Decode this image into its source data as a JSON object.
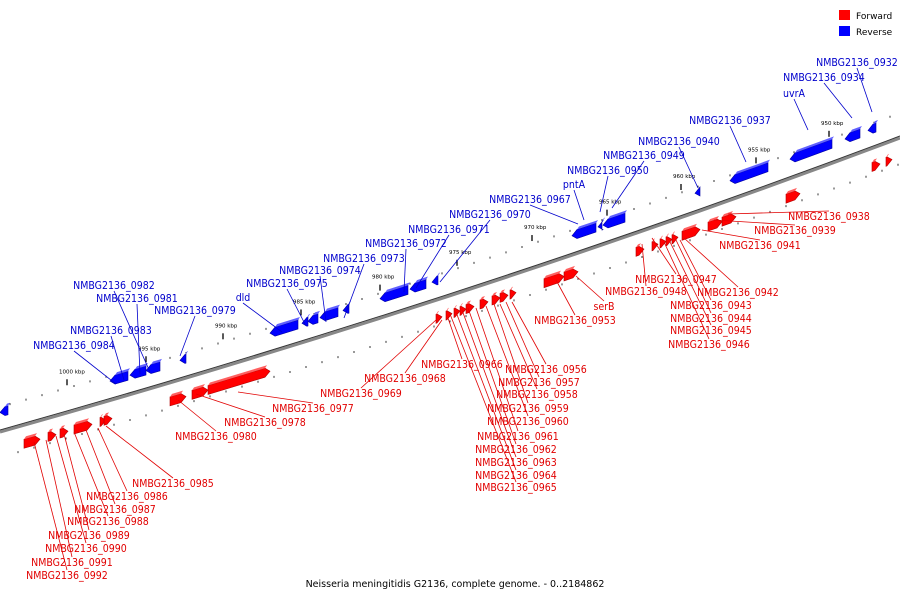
{
  "legend": {
    "forward": "Forward",
    "reverse": "Reverse",
    "forward_color": "#ff0000",
    "reverse_color": "#0000ff"
  },
  "caption": "Neisseria meningitidis G2136, complete genome. - 0..2184862",
  "ticks": [
    "950 kbp",
    "955 kbp",
    "960 kbp",
    "965 kbp",
    "970 kbp",
    "975 kbp",
    "980 kbp",
    "985 kbp",
    "990 kbp",
    "995 kbp",
    "1000 kbp"
  ],
  "reverse_genes": [
    "NMBG2136_0932",
    "NMBG2136_0934",
    "uvrA",
    "NMBG2136_0937",
    "NMBG2136_0940",
    "NMBG2136_0949",
    "NMBG2136_0950",
    "pntA",
    "NMBG2136_0967",
    "NMBG2136_0970",
    "NMBG2136_0971",
    "NMBG2136_0972",
    "NMBG2136_0973",
    "NMBG2136_0974",
    "NMBG2136_0975",
    "dld",
    "NMBG2136_0979",
    "NMBG2136_0982",
    "NMBG2136_0981",
    "NMBG2136_0983",
    "NMBG2136_0984"
  ],
  "forward_genes": [
    "NMBG2136_0938",
    "NMBG2136_0939",
    "NMBG2136_0941",
    "NMBG2136_0947",
    "NMBG2136_0942",
    "NMBG2136_0948",
    "NMBG2136_0943",
    "NMBG2136_0944",
    "NMBG2136_0945",
    "NMBG2136_0946",
    "serB",
    "NMBG2136_0953",
    "NMBG2136_0956",
    "NMBG2136_0966",
    "NMBG2136_0957",
    "NMBG2136_0968",
    "NMBG2136_0958",
    "NMBG2136_0969",
    "NMBG2136_0959",
    "NMBG2136_0977",
    "NMBG2136_0960",
    "NMBG2136_0978",
    "NMBG2136_0961",
    "NMBG2136_0980",
    "NMBG2136_0962",
    "NMBG2136_0963",
    "NMBG2136_0964",
    "NMBG2136_0965",
    "NMBG2136_0985",
    "NMBG2136_0986",
    "NMBG2136_0987",
    "NMBG2136_0988",
    "NMBG2136_0989",
    "NMBG2136_0990",
    "NMBG2136_0991",
    "NMBG2136_0992"
  ]
}
